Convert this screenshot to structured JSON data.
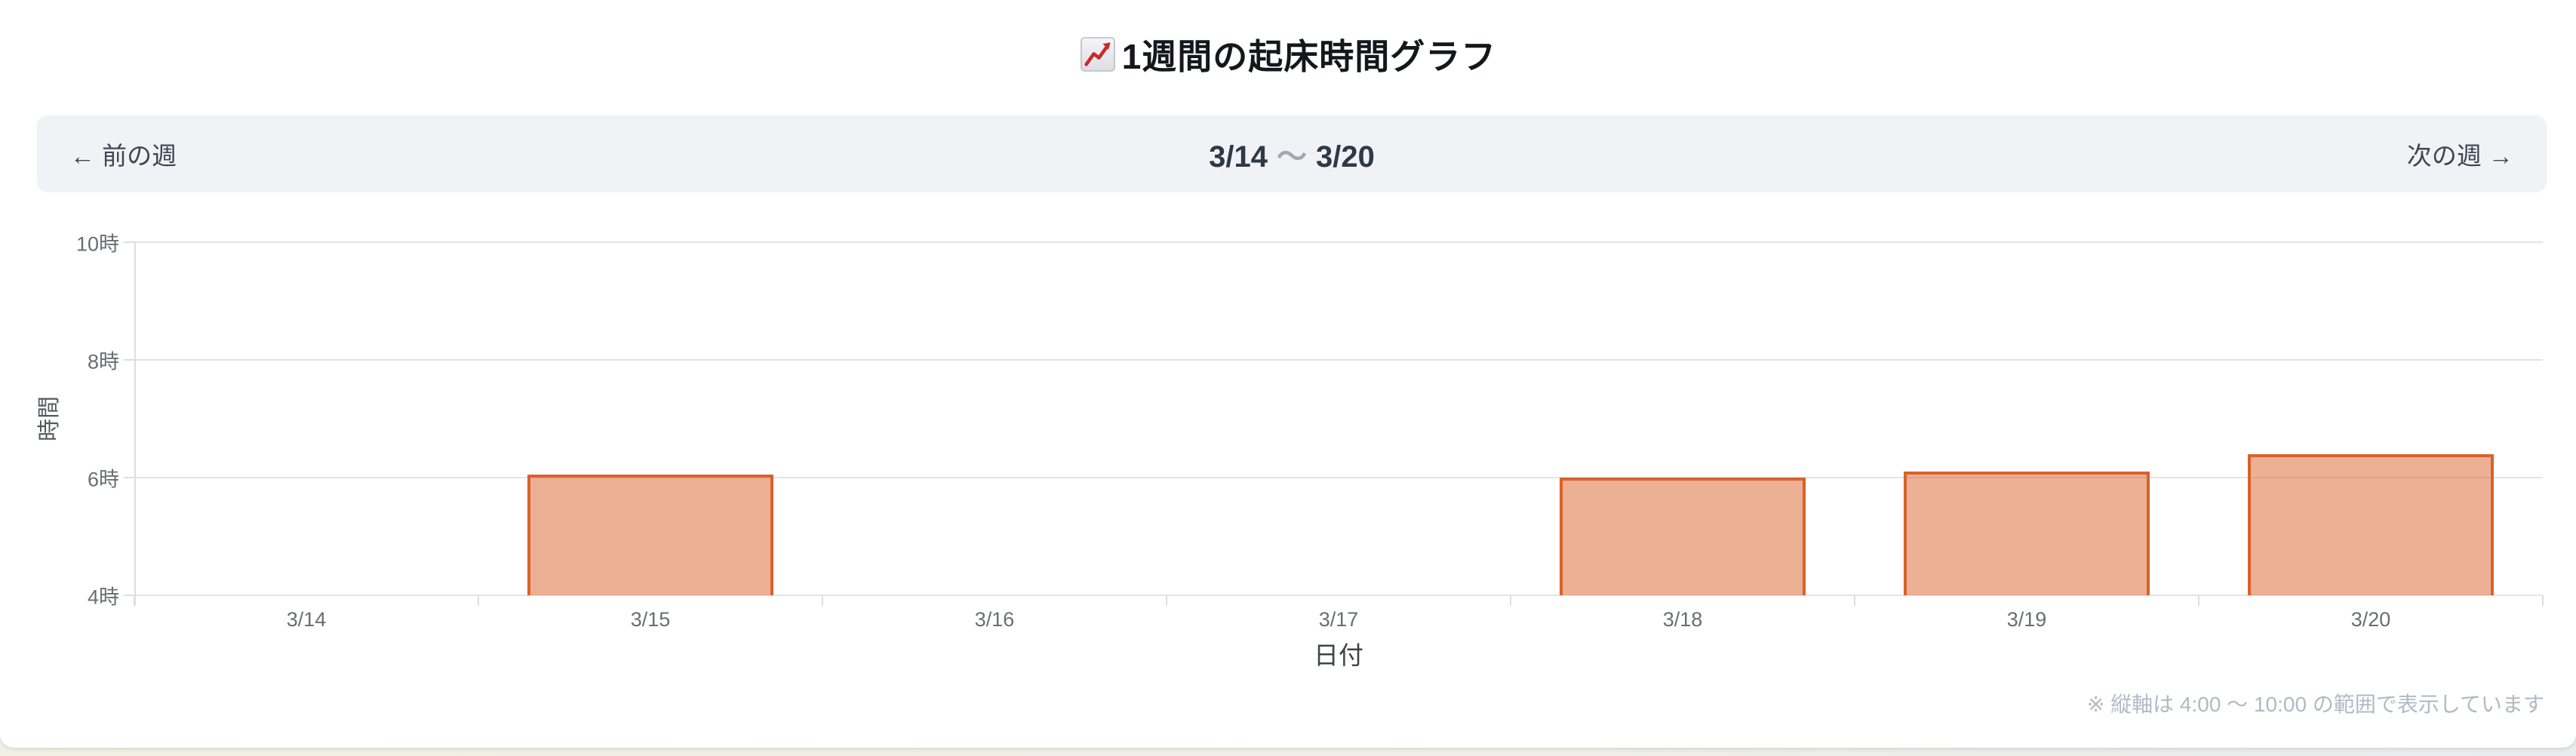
{
  "header": {
    "emoji": "📈",
    "title": "1週間の起床時間グラフ"
  },
  "week_nav": {
    "prev_label": "← 前の週",
    "range_start": "3/14",
    "range_separator": "〜",
    "range_end": "3/20",
    "next_label": "次の週 →"
  },
  "footnote": "※ 縦軸は 4:00 〜 10:00 の範囲で表示しています",
  "chart_data": {
    "type": "bar",
    "title": "1週間の起床時間グラフ",
    "categories": [
      "3/14",
      "3/15",
      "3/16",
      "3/17",
      "3/18",
      "3/19",
      "3/20"
    ],
    "values": [
      null,
      6.05,
      null,
      null,
      6.0,
      6.1,
      6.4
    ],
    "xlabel": "日付",
    "ylabel": "時間",
    "ylim": [
      4,
      10
    ],
    "y_ticks": [
      4,
      6,
      8,
      10
    ],
    "y_tick_labels": [
      "4時",
      "6時",
      "8時",
      "10時"
    ],
    "grid": true,
    "legend": "none",
    "bar_fill": "rgba(217, 98, 43, 0.5)",
    "bar_border": "#d9622b"
  },
  "colors": {
    "nav_bg": "#f0f2f5",
    "nav_text": "#3f4754",
    "date_text": "#2f3847",
    "separator_text": "#9fa9b6",
    "grid_line": "#e4e4e6",
    "axis_line": "#dedee2",
    "axis_text": "#6a6e73",
    "axis_title_text": "#3e434a",
    "footnote_text": "#b2b9c5",
    "card_bg": "#ffffff"
  }
}
